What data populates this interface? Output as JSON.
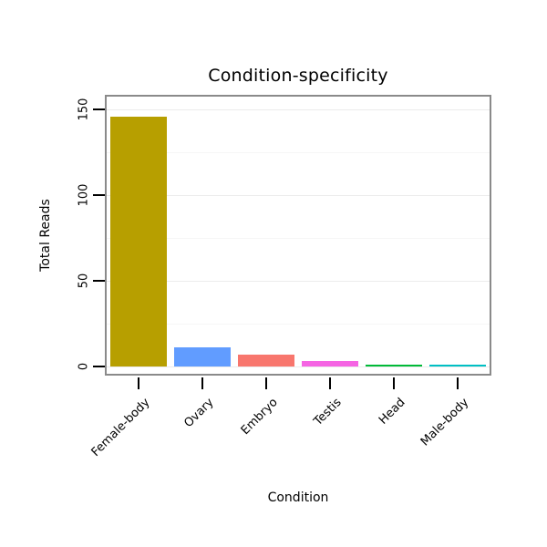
{
  "chart_data": {
    "type": "bar",
    "title": "Condition-specificity",
    "xlabel": "Condition",
    "ylabel": "Total Reads",
    "categories": [
      "Female-body",
      "Ovary",
      "Embryo",
      "Testis",
      "Head",
      "Male-body"
    ],
    "values": [
      146,
      11,
      7,
      3,
      1.2,
      0.8
    ],
    "bar_colors": [
      "#B79F00",
      "#619CFF",
      "#F8766D",
      "#F564E3",
      "#00BA38",
      "#00BFC4"
    ],
    "yticks": [
      0,
      50,
      100,
      150
    ],
    "yticks_minor": [
      25,
      75,
      125
    ],
    "ylim": [
      0,
      150
    ],
    "legend_position": "none",
    "grid": "faint-horizontal",
    "frame_color": "#8a8a8a",
    "background": "#ffffff"
  }
}
